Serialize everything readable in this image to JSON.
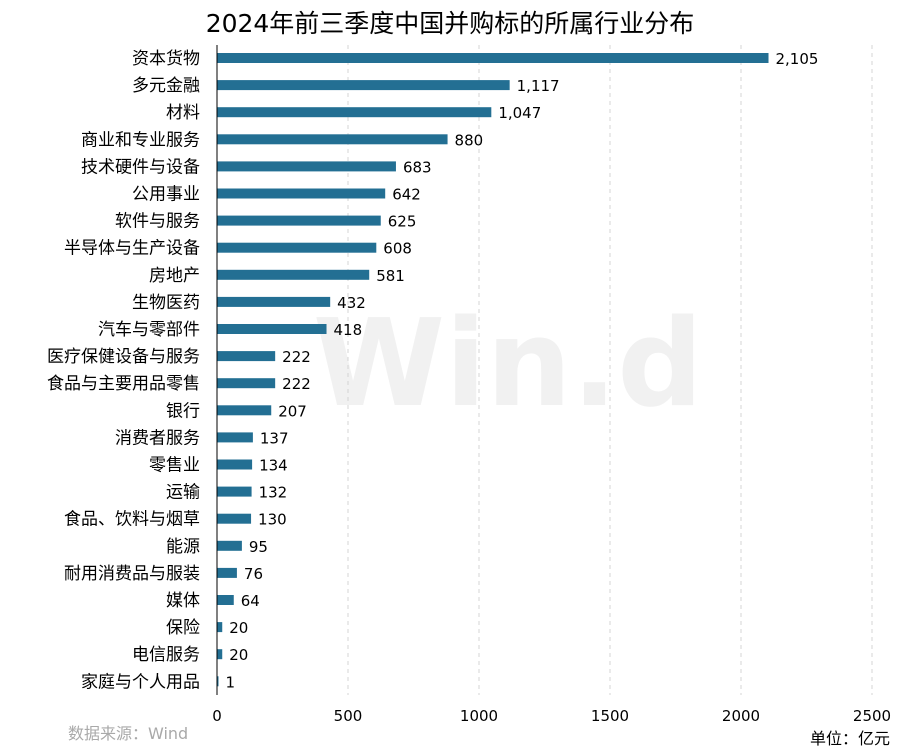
{
  "chart_data": {
    "type": "bar",
    "orientation": "horizontal",
    "title": "2024年前三季度中国并购标的所属行业分布",
    "categories": [
      "资本货物",
      "多元金融",
      "材料",
      "商业和专业服务",
      "技术硬件与设备",
      "公用事业",
      "软件与服务",
      "半导体与生产设备",
      "房地产",
      "生物医药",
      "汽车与零部件",
      "医疗保健设备与服务",
      "食品与主要用品零售",
      "银行",
      "消费者服务",
      "零售业",
      "运输",
      "食品、饮料与烟草",
      "能源",
      "耐用消费品与服装",
      "媒体",
      "保险",
      "电信服务",
      "家庭与个人用品"
    ],
    "values": [
      2105,
      1117,
      1047,
      880,
      683,
      642,
      625,
      608,
      581,
      432,
      418,
      222,
      222,
      207,
      137,
      134,
      132,
      130,
      95,
      76,
      64,
      20,
      20,
      1
    ],
    "value_labels": [
      "2,105",
      "1,117",
      "1,047",
      "880",
      "683",
      "642",
      "625",
      "608",
      "581",
      "432",
      "418",
      "222",
      "222",
      "207",
      "137",
      "134",
      "132",
      "130",
      "95",
      "76",
      "64",
      "20",
      "20",
      "1"
    ],
    "xlim": [
      0,
      2500
    ],
    "xticks": [
      0,
      500,
      1000,
      1500,
      2000,
      2500
    ],
    "grid": true,
    "bar_color": "#236f93"
  },
  "watermark": "Win.d",
  "source": "数据来源：Wind",
  "unit": "单位：亿元"
}
